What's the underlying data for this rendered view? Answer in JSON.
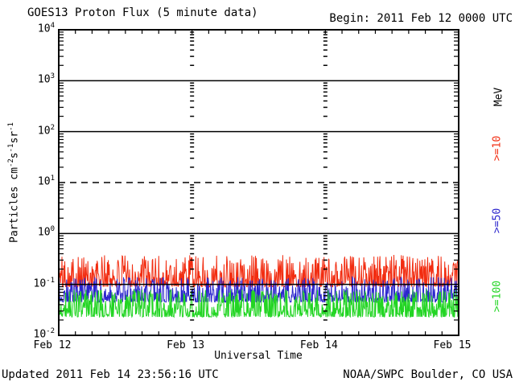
{
  "header": {
    "title": "GOES13 Proton Flux (5 minute data)",
    "begin_label": "Begin: 2011 Feb 12 0000 UTC"
  },
  "footer": {
    "updated_label": "Updated 2011 Feb 14 23:56:16 UTC",
    "source_label": "NOAA/SWPC Boulder, CO USA"
  },
  "chart_data": {
    "type": "line",
    "title": "GOES13 Proton Flux (5 minute data)",
    "xlabel": "Universal Time",
    "ylabel": "Particles cm-2 s-1 sr-1",
    "ylabel_parts": [
      [
        "t",
        "Particles  cm"
      ],
      [
        "s",
        "-2"
      ],
      [
        "t",
        "s"
      ],
      [
        "s",
        "-1"
      ],
      [
        "t",
        "sr"
      ],
      [
        "s",
        "-1"
      ]
    ],
    "begin_time": "2011 Feb 12 0000 UTC",
    "updated_time": "2011 Feb 14 23:56:16 UTC",
    "x_range_hours": 72,
    "x_tick_interval_hours": 3,
    "x_day_labels": [
      "Feb 12",
      "Feb 13",
      "Feb 14",
      "Feb 15"
    ],
    "day_boundary_hours": [
      24,
      48
    ],
    "y_scale": "log10",
    "y_range": [
      0.01,
      10000
    ],
    "y_tick_exponents": [
      4,
      3,
      2,
      1,
      0,
      -1,
      -2
    ],
    "gridline_solid_levels": [
      1000,
      100,
      1,
      0.1
    ],
    "gridline_dashed_levels": [
      10
    ],
    "cadence_minutes": 5,
    "grid": "on",
    "legend_position": "right",
    "right_axis_unit": "MeV",
    "axis_color": "#000000",
    "series": [
      {
        "name": "Protons >=10 MeV",
        "label": ">=10",
        "color": "#f22d11",
        "min_flux": 0.09,
        "max_flux": 0.38,
        "median_flux": 0.125,
        "character": "quiet-time background noise, no event",
        "seed": 101
      },
      {
        "name": "Protons >=50 MeV",
        "label": ">=50",
        "color": "#2b25cd",
        "min_flux": 0.045,
        "max_flux": 0.14,
        "median_flux": 0.057,
        "character": "quiet-time background noise, no event",
        "seed": 202
      },
      {
        "name": "Protons >=100 MeV",
        "label": ">=100",
        "color": "#22d523",
        "min_flux": 0.023,
        "max_flux": 0.08,
        "median_flux": 0.03,
        "character": "quiet-time background noise, no event",
        "seed": 303
      }
    ]
  }
}
